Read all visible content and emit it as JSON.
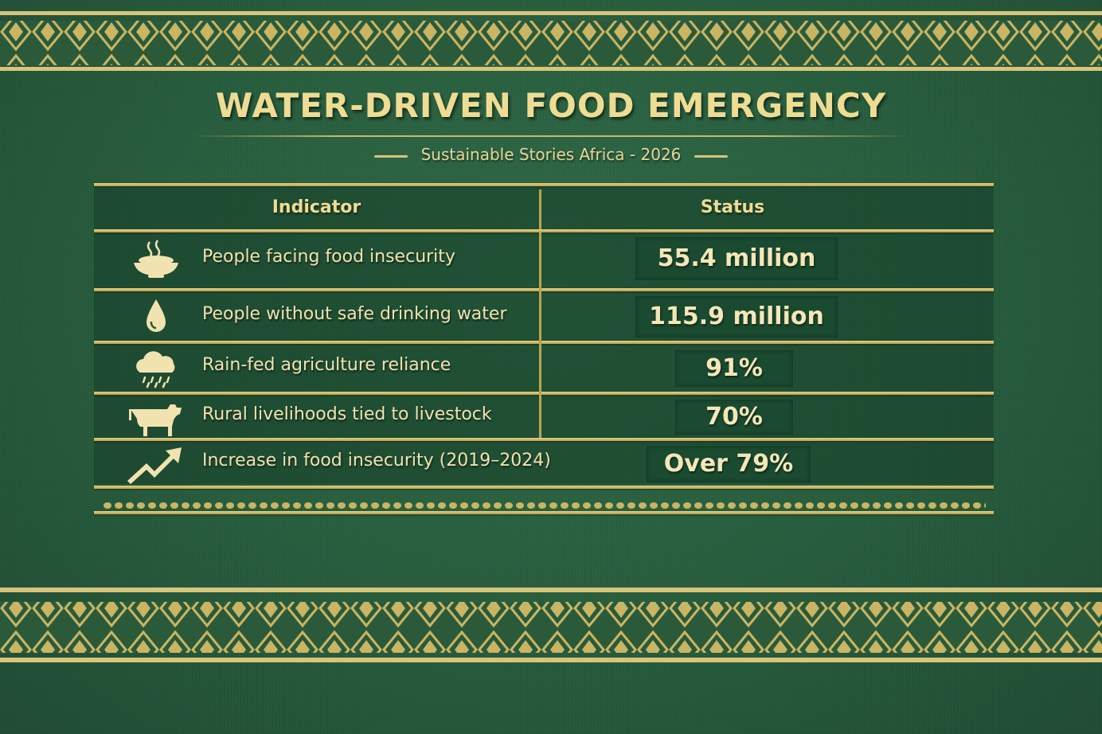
{
  "title": "WATER-DRIVEN FOOD EMERGENCY",
  "subtitle": "Sustainable Stories Africa - 2026",
  "colors": {
    "background": "#275c3d",
    "gold": "#e7d486",
    "value_box": "#1a4a30"
  },
  "table": {
    "headers": {
      "indicator": "Indicator",
      "status": "Status"
    },
    "rows": [
      {
        "icon": "food-bowl-icon",
        "indicator": "People facing food insecurity",
        "status": "55.4 million"
      },
      {
        "icon": "water-drop-icon",
        "indicator": "People without safe drinking water",
        "status": "115.9 million"
      },
      {
        "icon": "rain-cloud-icon",
        "indicator": "Rain-fed agriculture reliance",
        "status": "91%"
      },
      {
        "icon": "cow-icon",
        "indicator": "Rural livelihoods tied to livestock",
        "status": "70%"
      },
      {
        "icon": "trend-up-arrow-icon",
        "indicator": "Increase in food insecurity (2019–2024)",
        "status": "Over 79%"
      }
    ]
  }
}
